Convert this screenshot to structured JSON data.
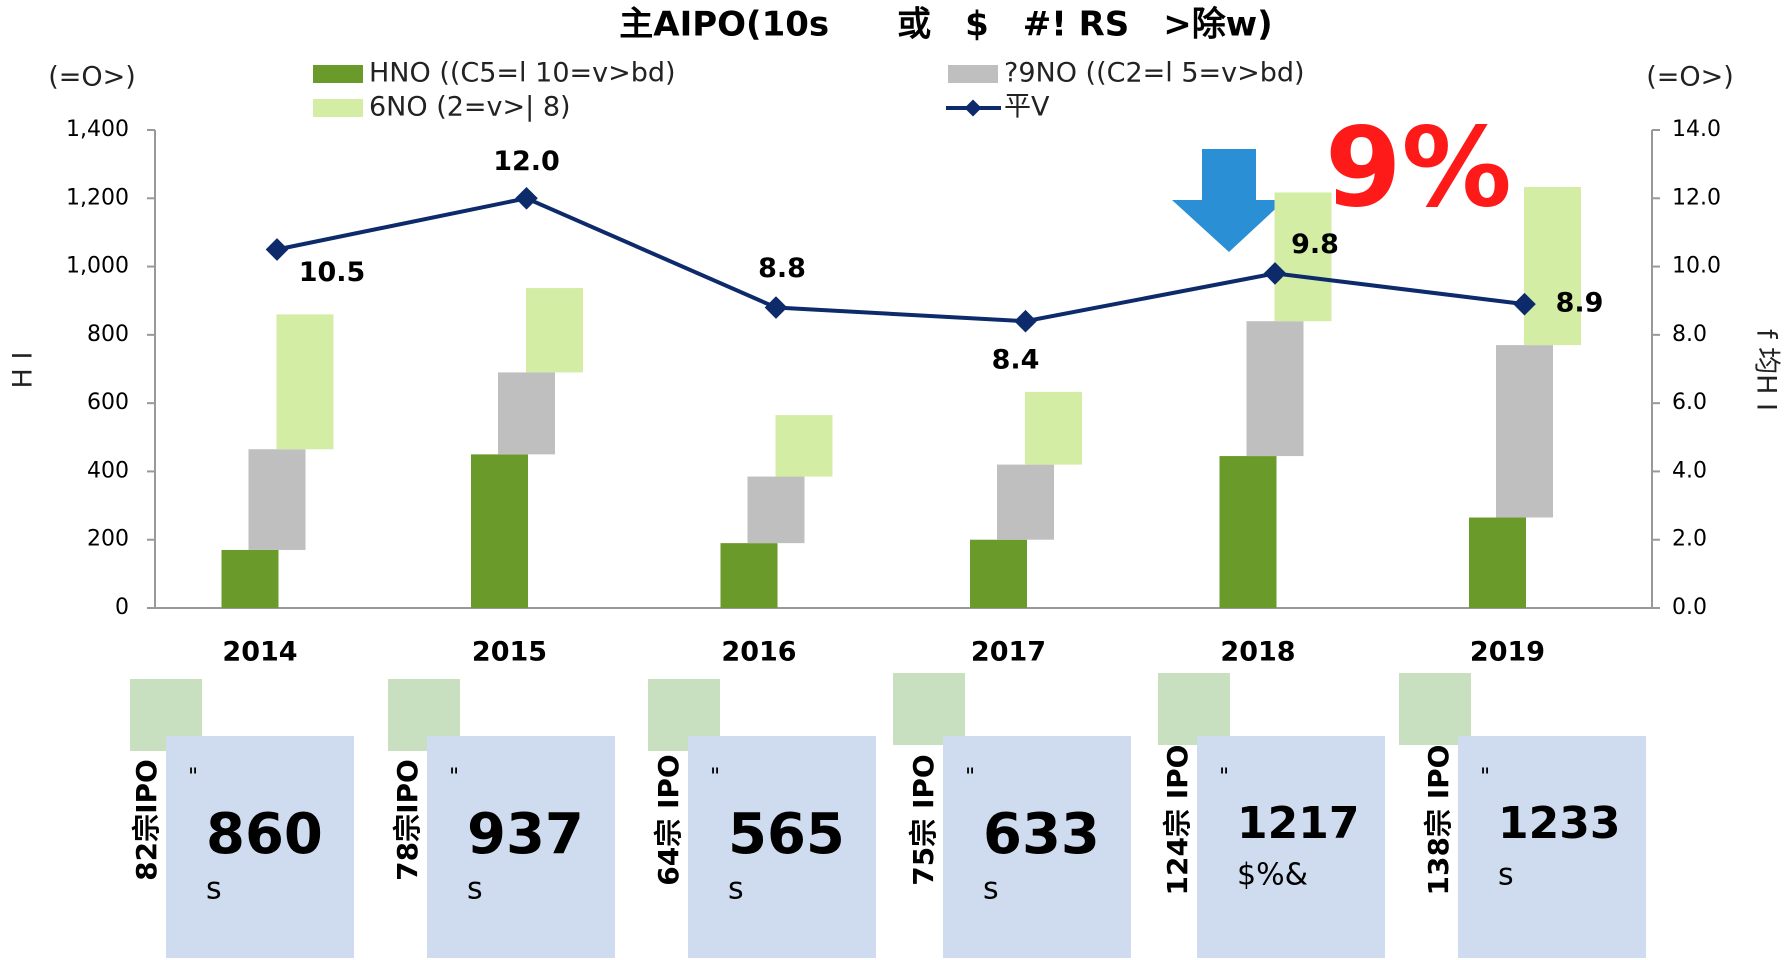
{
  "chart_data": {
    "type": "floating-stack-line",
    "title": "主AIPO(10s　　或　$　#! RS　>除w)",
    "left_unit": "(=O>)",
    "right_unit": "(=O>)",
    "ylabel": "H I",
    "y2label": "f 均H I",
    "annotation": "9%",
    "categories": [
      "2014",
      "2015",
      "2016",
      "2017",
      "2018",
      "2019"
    ],
    "series": [
      {
        "name": "HNO ((C5=l 10=v>bd)",
        "color": "#6a9a2a",
        "values": [
          170,
          450,
          190,
          200,
          445,
          265
        ]
      },
      {
        "name": "?9NO ((C2=l 5=v>bd)",
        "color": "#bfbfbf",
        "values": [
          295,
          240,
          195,
          220,
          395,
          505
        ]
      },
      {
        "name": "6NO (2=v>| 8)",
        "color": "#d3eda4",
        "values": [
          395,
          247,
          180,
          213,
          377,
          463
        ]
      },
      {
        "name": "平V",
        "color": "#0d2a6b",
        "axis": "y2",
        "values": [
          10.5,
          12.0,
          8.8,
          8.4,
          9.8,
          8.9
        ],
        "value_labels": [
          "10.5",
          "12.0",
          "8.8",
          "8.4",
          "9.8",
          "8.9"
        ]
      }
    ],
    "ylim": [
      0,
      1400
    ],
    "yticks": [
      0,
      200,
      400,
      600,
      800,
      {
        "value": 1000,
        "label": "1,000"
      },
      {
        "value": 1200,
        "label": "1,200"
      },
      {
        "value": 1400,
        "label": "1,400"
      }
    ],
    "y2lim": [
      0,
      14
    ],
    "y2ticks": [
      {
        "value": 0,
        "label": "0.0"
      },
      {
        "value": 2,
        "label": "2.0"
      },
      {
        "value": 4,
        "label": "4.0"
      },
      {
        "value": 6,
        "label": "6.0"
      },
      {
        "value": 8,
        "label": "8.0"
      },
      {
        "value": 10,
        "label": "10.0"
      },
      {
        "value": 12,
        "label": "12.0"
      },
      {
        "value": 14,
        "label": "14.0"
      }
    ],
    "panels": [
      {
        "count": "82宗IPO",
        "mark": "\"",
        "total": "860",
        "unit": "s"
      },
      {
        "count": "78宗IPO",
        "mark": "\"",
        "total": "937",
        "unit": "s"
      },
      {
        "count": "64宗 IPO",
        "mark": "\"",
        "total": "565",
        "unit": "s"
      },
      {
        "count": "75宗 IPO",
        "mark": "\"",
        "total": "633",
        "unit": "s"
      },
      {
        "count": "124宗 IPO",
        "mark": "\"",
        "total": "1217",
        "unit": "$%&"
      },
      {
        "count": "138宗 IPO",
        "mark": "\"",
        "total": "1233",
        "unit": "s"
      }
    ]
  }
}
